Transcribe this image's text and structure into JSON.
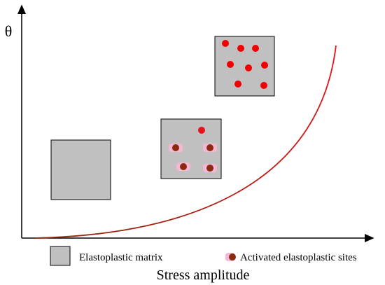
{
  "axes": {
    "y_label": "θ",
    "x_label": "Stress amplitude"
  },
  "legend": {
    "items": [
      {
        "label": "Elastoplastic matrix"
      },
      {
        "label": "Activated elastoplastic sites"
      }
    ]
  }
}
